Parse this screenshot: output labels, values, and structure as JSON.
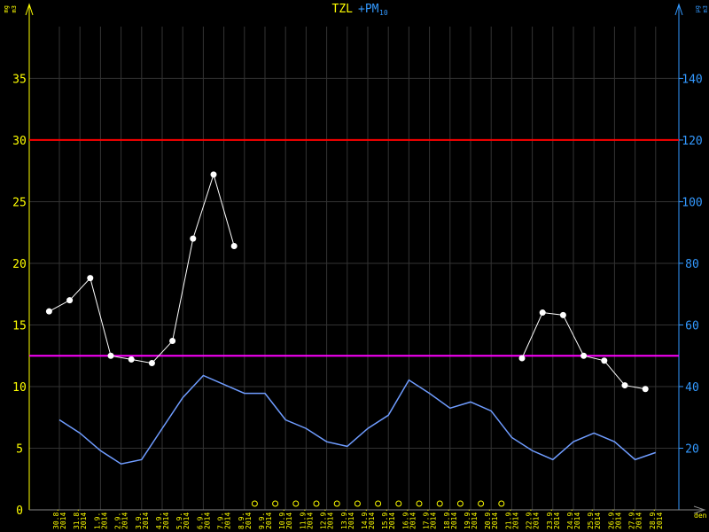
{
  "chart_data": {
    "type": "line",
    "title": "TZL",
    "title_extra": "+PM",
    "title_extra_sub": "10",
    "y_unit": [
      "mg",
      "m3"
    ],
    "y2_unit": [
      "µg",
      "m3"
    ],
    "x_label": "den",
    "categories": [
      {
        "day": "30.8.",
        "year": "2014"
      },
      {
        "day": "31.8.",
        "year": "2014"
      },
      {
        "day": "1.9.",
        "year": "2014"
      },
      {
        "day": "2.9.",
        "year": "2014"
      },
      {
        "day": "3.9.",
        "year": "2014"
      },
      {
        "day": "4.9.",
        "year": "2014"
      },
      {
        "day": "5.9.",
        "year": "2014"
      },
      {
        "day": "6.9.",
        "year": "2014"
      },
      {
        "day": "7.9.",
        "year": "2014"
      },
      {
        "day": "8.9.",
        "year": "2014"
      },
      {
        "day": "9.9.",
        "year": "2014"
      },
      {
        "day": "10.9.",
        "year": "2014"
      },
      {
        "day": "11.9.",
        "year": "2014"
      },
      {
        "day": "12.9.",
        "year": "2014"
      },
      {
        "day": "13.9.",
        "year": "2014"
      },
      {
        "day": "14.9.",
        "year": "2014"
      },
      {
        "day": "15.9.",
        "year": "2014"
      },
      {
        "day": "16.9.",
        "year": "2014"
      },
      {
        "day": "17.9.",
        "year": "2014"
      },
      {
        "day": "18.9.",
        "year": "2014"
      },
      {
        "day": "19.9.",
        "year": "2014"
      },
      {
        "day": "20.9.",
        "year": "2014"
      },
      {
        "day": "21.9.",
        "year": "2014"
      },
      {
        "day": "22.9.",
        "year": "2014"
      },
      {
        "day": "23.9.",
        "year": "2014"
      },
      {
        "day": "24.9.",
        "year": "2014"
      },
      {
        "day": "25.9.",
        "year": "2014"
      },
      {
        "day": "26.9.",
        "year": "2014"
      },
      {
        "day": "27.9.",
        "year": "2014"
      },
      {
        "day": "28.9.",
        "year": "2014"
      }
    ],
    "ylim": [
      0,
      41
    ],
    "yticks": [
      0,
      5,
      10,
      15,
      20,
      25,
      30,
      35
    ],
    "y2lim": [
      0,
      164
    ],
    "y2ticks": [
      20,
      40,
      60,
      80,
      100,
      120,
      140
    ],
    "series": [
      {
        "color": "#ffffff",
        "values": [
          16.1,
          17.0,
          18.8,
          12.5,
          12.2,
          11.9,
          13.7,
          22.0,
          27.2,
          21.4,
          null,
          null,
          null,
          null,
          null,
          null,
          null,
          null,
          null,
          null,
          null,
          null,
          null,
          12.3,
          16.0,
          15.8,
          12.5,
          12.1,
          10.1,
          9.8
        ]
      },
      {
        "color": "#6f9cff",
        "axis": "y2",
        "values": [
          29.2,
          24.9,
          19.2,
          14.9,
          16.3,
          26.4,
          36.4,
          43.6,
          40.7,
          37.8,
          37.8,
          29.2,
          26.4,
          22.1,
          20.6,
          26.4,
          30.7,
          42.1,
          37.8,
          33.0,
          35.0,
          32.1,
          23.5,
          19.2,
          16.3,
          22.1,
          24.9,
          22.1,
          16.3,
          18.6
        ]
      }
    ],
    "limits": [
      {
        "value": 30,
        "color": "#ff0000"
      },
      {
        "value": 50,
        "color": "#ff00ff",
        "axis": "y2"
      }
    ],
    "y_color": "#ffff00",
    "y2_color": "#3399ff",
    "grid": true
  }
}
